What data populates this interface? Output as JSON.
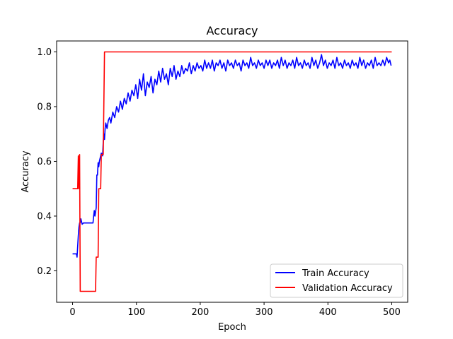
{
  "chart_data": {
    "type": "line",
    "title": "Accuracy",
    "xlabel": "Epoch",
    "ylabel": "Accuracy",
    "xlim": [
      -25,
      525
    ],
    "ylim": [
      0.085,
      1.04
    ],
    "xticks": [
      0,
      100,
      200,
      300,
      400,
      500
    ],
    "yticks": [
      0.2,
      0.4,
      0.6,
      0.8,
      1.0
    ],
    "ytick_labels": [
      "0.2",
      "0.4",
      "0.6",
      "0.8",
      "1.0"
    ],
    "grid": false,
    "legend_position": "lower-right",
    "series": [
      {
        "name": "Train Accuracy",
        "color": "#0000ff",
        "points": [
          [
            0,
            0.262
          ],
          [
            6,
            0.262
          ],
          [
            7,
            0.25
          ],
          [
            9,
            0.33
          ],
          [
            10,
            0.36
          ],
          [
            11,
            0.375
          ],
          [
            12,
            0.375
          ],
          [
            13,
            0.39
          ],
          [
            15,
            0.37
          ],
          [
            17,
            0.375
          ],
          [
            20,
            0.375
          ],
          [
            30,
            0.375
          ],
          [
            32,
            0.375
          ],
          [
            33,
            0.4
          ],
          [
            34,
            0.42
          ],
          [
            35,
            0.4
          ],
          [
            37,
            0.43
          ],
          [
            38,
            0.55
          ],
          [
            39,
            0.55
          ],
          [
            40,
            0.595
          ],
          [
            41,
            0.58
          ],
          [
            42,
            0.6
          ],
          [
            43,
            0.61
          ],
          [
            45,
            0.63
          ],
          [
            47,
            0.62
          ],
          [
            48,
            0.67
          ],
          [
            49,
            0.7
          ],
          [
            50,
            0.68
          ],
          [
            51,
            0.72
          ],
          [
            52,
            0.74
          ],
          [
            54,
            0.72
          ],
          [
            56,
            0.75
          ],
          [
            58,
            0.76
          ],
          [
            60,
            0.74
          ],
          [
            63,
            0.78
          ],
          [
            66,
            0.76
          ],
          [
            69,
            0.8
          ],
          [
            72,
            0.78
          ],
          [
            75,
            0.82
          ],
          [
            78,
            0.79
          ],
          [
            81,
            0.83
          ],
          [
            84,
            0.81
          ],
          [
            87,
            0.85
          ],
          [
            90,
            0.82
          ],
          [
            93,
            0.86
          ],
          [
            96,
            0.84
          ],
          [
            99,
            0.88
          ],
          [
            102,
            0.83
          ],
          [
            105,
            0.9
          ],
          [
            108,
            0.86
          ],
          [
            111,
            0.92
          ],
          [
            114,
            0.84
          ],
          [
            117,
            0.89
          ],
          [
            120,
            0.87
          ],
          [
            123,
            0.91
          ],
          [
            126,
            0.85
          ],
          [
            129,
            0.9
          ],
          [
            132,
            0.88
          ],
          [
            135,
            0.93
          ],
          [
            138,
            0.89
          ],
          [
            141,
            0.94
          ],
          [
            144,
            0.9
          ],
          [
            147,
            0.92
          ],
          [
            150,
            0.88
          ],
          [
            153,
            0.94
          ],
          [
            156,
            0.91
          ],
          [
            159,
            0.95
          ],
          [
            162,
            0.9
          ],
          [
            165,
            0.93
          ],
          [
            168,
            0.91
          ],
          [
            171,
            0.95
          ],
          [
            174,
            0.92
          ],
          [
            177,
            0.94
          ],
          [
            180,
            0.93
          ],
          [
            183,
            0.96
          ],
          [
            186,
            0.92
          ],
          [
            189,
            0.95
          ],
          [
            192,
            0.93
          ],
          [
            195,
            0.96
          ],
          [
            198,
            0.94
          ],
          [
            201,
            0.95
          ],
          [
            204,
            0.93
          ],
          [
            207,
            0.97
          ],
          [
            210,
            0.94
          ],
          [
            213,
            0.96
          ],
          [
            216,
            0.94
          ],
          [
            219,
            0.97
          ],
          [
            222,
            0.93
          ],
          [
            225,
            0.96
          ],
          [
            228,
            0.95
          ],
          [
            231,
            0.97
          ],
          [
            234,
            0.94
          ],
          [
            237,
            0.96
          ],
          [
            240,
            0.93
          ],
          [
            243,
            0.97
          ],
          [
            246,
            0.95
          ],
          [
            249,
            0.96
          ],
          [
            252,
            0.94
          ],
          [
            255,
            0.97
          ],
          [
            258,
            0.95
          ],
          [
            261,
            0.96
          ],
          [
            264,
            0.93
          ],
          [
            267,
            0.97
          ],
          [
            270,
            0.95
          ],
          [
            273,
            0.96
          ],
          [
            276,
            0.94
          ],
          [
            279,
            0.98
          ],
          [
            282,
            0.95
          ],
          [
            285,
            0.96
          ],
          [
            288,
            0.94
          ],
          [
            291,
            0.97
          ],
          [
            294,
            0.95
          ],
          [
            297,
            0.96
          ],
          [
            300,
            0.94
          ],
          [
            303,
            0.97
          ],
          [
            306,
            0.95
          ],
          [
            309,
            0.97
          ],
          [
            312,
            0.94
          ],
          [
            315,
            0.96
          ],
          [
            318,
            0.95
          ],
          [
            321,
            0.97
          ],
          [
            324,
            0.94
          ],
          [
            327,
            0.98
          ],
          [
            330,
            0.95
          ],
          [
            333,
            0.97
          ],
          [
            336,
            0.94
          ],
          [
            339,
            0.96
          ],
          [
            342,
            0.95
          ],
          [
            345,
            0.97
          ],
          [
            348,
            0.94
          ],
          [
            351,
            0.98
          ],
          [
            354,
            0.95
          ],
          [
            357,
            0.96
          ],
          [
            360,
            0.94
          ],
          [
            363,
            0.97
          ],
          [
            366,
            0.95
          ],
          [
            369,
            0.96
          ],
          [
            372,
            0.94
          ],
          [
            375,
            0.98
          ],
          [
            378,
            0.95
          ],
          [
            381,
            0.97
          ],
          [
            384,
            0.94
          ],
          [
            387,
            0.96
          ],
          [
            390,
            0.99
          ],
          [
            393,
            0.95
          ],
          [
            396,
            0.97
          ],
          [
            399,
            0.94
          ],
          [
            402,
            0.96
          ],
          [
            405,
            0.95
          ],
          [
            408,
            0.97
          ],
          [
            411,
            0.94
          ],
          [
            414,
            0.98
          ],
          [
            417,
            0.95
          ],
          [
            420,
            0.96
          ],
          [
            423,
            0.94
          ],
          [
            426,
            0.97
          ],
          [
            429,
            0.95
          ],
          [
            432,
            0.96
          ],
          [
            435,
            0.94
          ],
          [
            438,
            0.97
          ],
          [
            441,
            0.95
          ],
          [
            444,
            0.96
          ],
          [
            447,
            0.94
          ],
          [
            450,
            0.98
          ],
          [
            453,
            0.95
          ],
          [
            456,
            0.97
          ],
          [
            459,
            0.94
          ],
          [
            462,
            0.96
          ],
          [
            465,
            0.95
          ],
          [
            468,
            0.97
          ],
          [
            471,
            0.94
          ],
          [
            474,
            0.98
          ],
          [
            477,
            0.95
          ],
          [
            480,
            0.96
          ],
          [
            483,
            0.95
          ],
          [
            486,
            0.97
          ],
          [
            489,
            0.95
          ],
          [
            492,
            0.98
          ],
          [
            495,
            0.96
          ],
          [
            497,
            0.97
          ],
          [
            499,
            0.95
          ]
        ]
      },
      {
        "name": "Validation Accuracy",
        "color": "#ff0000",
        "points": [
          [
            0,
            0.5
          ],
          [
            8,
            0.5
          ],
          [
            9,
            0.62
          ],
          [
            10,
            0.5
          ],
          [
            11,
            0.625
          ],
          [
            12,
            0.125
          ],
          [
            36,
            0.125
          ],
          [
            37,
            0.25
          ],
          [
            40,
            0.25
          ],
          [
            41,
            0.5
          ],
          [
            44,
            0.5
          ],
          [
            45,
            0.625
          ],
          [
            48,
            0.625
          ],
          [
            50,
            1.0
          ],
          [
            500,
            1.0
          ]
        ]
      }
    ]
  }
}
